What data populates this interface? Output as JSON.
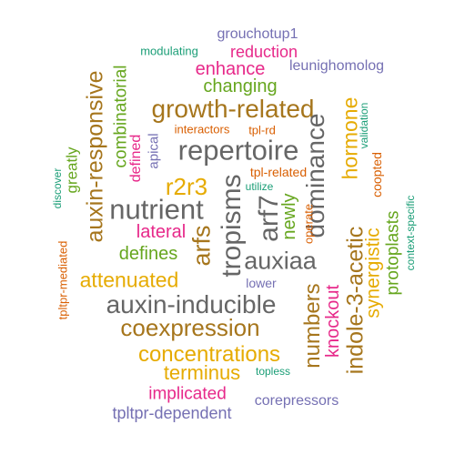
{
  "colors": {
    "teal": "#1b9e77",
    "orange": "#d95f02",
    "purple": "#7570b3",
    "magenta": "#e7298a",
    "green": "#66a61e",
    "gold": "#e6ab02",
    "brown": "#a6761d",
    "gray": "#666666"
  },
  "words": [
    {
      "text": "grouchotup1",
      "color": "#7570b3"
    },
    {
      "text": "modulating",
      "color": "#1b9e77"
    },
    {
      "text": "reduction",
      "color": "#e7298a"
    },
    {
      "text": "leunighomolog",
      "color": "#7570b3"
    },
    {
      "text": "enhance",
      "color": "#e7298a"
    },
    {
      "text": "changing",
      "color": "#66a61e"
    },
    {
      "text": "growth-related",
      "color": "#a6761d"
    },
    {
      "text": "interactors",
      "color": "#d95f02"
    },
    {
      "text": "tpl-rd",
      "color": "#d95f02"
    },
    {
      "text": "repertoire",
      "color": "#666666"
    },
    {
      "text": "tpl-related",
      "color": "#d95f02"
    },
    {
      "text": "utilize",
      "color": "#1b9e77"
    },
    {
      "text": "r2r3",
      "color": "#e6ab02"
    },
    {
      "text": "nutrient",
      "color": "#666666"
    },
    {
      "text": "lateral",
      "color": "#e7298a"
    },
    {
      "text": "defines",
      "color": "#66a61e"
    },
    {
      "text": "auxiaa",
      "color": "#666666"
    },
    {
      "text": "attenuated",
      "color": "#e6ab02"
    },
    {
      "text": "lower",
      "color": "#7570b3"
    },
    {
      "text": "auxin-inducible",
      "color": "#666666"
    },
    {
      "text": "coexpression",
      "color": "#a6761d"
    },
    {
      "text": "concentrations",
      "color": "#e6ab02"
    },
    {
      "text": "terminus",
      "color": "#e6ab02"
    },
    {
      "text": "topless",
      "color": "#1b9e77"
    },
    {
      "text": "implicated",
      "color": "#e7298a"
    },
    {
      "text": "corepressors",
      "color": "#7570b3"
    },
    {
      "text": "tpltpr-dependent",
      "color": "#7570b3"
    },
    {
      "text": "auxin-responsive",
      "color": "#a6761d"
    },
    {
      "text": "combinatorial",
      "color": "#66a61e"
    },
    {
      "text": "greatly",
      "color": "#66a61e"
    },
    {
      "text": "discover",
      "color": "#1b9e77"
    },
    {
      "text": "tpltpr-mediated",
      "color": "#d95f02"
    },
    {
      "text": "defined",
      "color": "#e7298a"
    },
    {
      "text": "apical",
      "color": "#7570b3"
    },
    {
      "text": "arfs",
      "color": "#a6761d"
    },
    {
      "text": "tropisms",
      "color": "#666666"
    },
    {
      "text": "arf7",
      "color": "#666666"
    },
    {
      "text": "newly",
      "color": "#66a61e"
    },
    {
      "text": "dominance",
      "color": "#666666"
    },
    {
      "text": "operate",
      "color": "#d95f02"
    },
    {
      "text": "numbers",
      "color": "#a6761d"
    },
    {
      "text": "knockout",
      "color": "#e7298a"
    },
    {
      "text": "indole-3-acetic",
      "color": "#a6761d"
    },
    {
      "text": "hormone",
      "color": "#e6ab02"
    },
    {
      "text": "validation",
      "color": "#1b9e77"
    },
    {
      "text": "coopted",
      "color": "#d95f02"
    },
    {
      "text": "synergistic",
      "color": "#e6ab02"
    },
    {
      "text": "protoplasts",
      "color": "#66a61e"
    },
    {
      "text": "context-specific",
      "color": "#1b9e77"
    }
  ]
}
